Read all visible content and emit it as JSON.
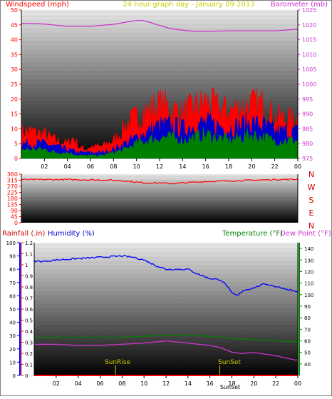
{
  "colors": {
    "wind": "#ff0000",
    "gust_mid": "#0000c8",
    "gust_low": "#008000",
    "baro": "#cc33cc",
    "title": "#cccc00",
    "humidity": "#0000ff",
    "temp": "#008000",
    "dew": "#cc33cc",
    "rain": "#ff0000",
    "axis_left": "#ff0000",
    "axis_rain": "#ff0000",
    "axis_hum": "#0000ff",
    "axis_temp": "#008000",
    "sun": "#cccc00",
    "plot_top": "#e6e6e6",
    "plot_bottom": "#000000"
  },
  "header": {
    "windspeed_label": "Windspeed (mph)",
    "title": "24 hour graph day - January 09 2013",
    "barometer_label": "Barometer (mb)"
  },
  "mid": {
    "compass": [
      "N",
      "W",
      "S",
      "E",
      "N"
    ]
  },
  "bottom_header": {
    "rainfall_label": "Rainfall (.in)",
    "humidity_label": "Humidity (%)",
    "temperature_label": "Temperature (°F)",
    "dewpoint_label": "Dew Point (°F)"
  },
  "annotations": {
    "sunrise": "SunRise",
    "sunset": "SunSet",
    "sunset_bottom": "SunSet"
  },
  "chart_data": [
    {
      "type": "line",
      "title": "24 hour graph day - January 09 2013",
      "x_ticks": [
        "02",
        "04",
        "06",
        "08",
        "10",
        "12",
        "14",
        "16",
        "18",
        "20",
        "22",
        "00"
      ],
      "xlim": [
        0,
        24
      ],
      "left_axis": {
        "label": "Windspeed (mph)",
        "ylim": [
          0,
          50
        ],
        "ticks": [
          0,
          5,
          10,
          15,
          20,
          25,
          30,
          35,
          40,
          45,
          50
        ]
      },
      "right_axis": {
        "label": "Barometer (mb)",
        "ylim": [
          975,
          1025
        ],
        "ticks": [
          975,
          980,
          985,
          990,
          995,
          1000,
          1005,
          1010,
          1015,
          1020,
          1025
        ]
      },
      "series": [
        {
          "name": "Barometer",
          "axis": "right",
          "x": [
            0,
            2,
            4,
            6,
            8,
            10,
            10.5,
            11,
            12,
            13,
            14,
            15,
            16,
            18,
            20,
            22,
            24
          ],
          "y": [
            1020.5,
            1020.3,
            1019.5,
            1019.5,
            1020.2,
            1021.5,
            1021.5,
            1021,
            1019.8,
            1018.7,
            1018.2,
            1017.8,
            1017.8,
            1018,
            1018,
            1018,
            1018.5
          ]
        },
        {
          "name": "Gust",
          "axis": "left",
          "x": [
            0,
            1,
            2,
            3,
            4,
            4.5,
            5,
            5.5,
            6,
            7,
            8,
            8.5,
            9,
            10,
            11,
            12,
            13,
            14,
            15,
            16,
            17,
            18,
            19,
            20,
            21,
            22,
            23,
            24
          ],
          "y": [
            9,
            9,
            8,
            6,
            5,
            7,
            4,
            3,
            4,
            4,
            6,
            8,
            11,
            14,
            16,
            18,
            17,
            15,
            17,
            19,
            17,
            16,
            17,
            18,
            18,
            14,
            13,
            13
          ]
        },
        {
          "name": "Wind (mid)",
          "axis": "left",
          "x": [
            0,
            1,
            2,
            3,
            4,
            5,
            6,
            7,
            8,
            9,
            10,
            11,
            12,
            13,
            14,
            15,
            16,
            17,
            18,
            19,
            20,
            21,
            22,
            23,
            24
          ],
          "y": [
            5,
            5,
            5,
            4,
            3,
            2,
            2,
            2,
            3,
            5,
            7,
            9,
            11,
            11,
            10,
            11,
            12,
            11,
            10,
            11,
            12,
            11,
            9,
            9,
            9
          ]
        },
        {
          "name": "Wind (low)",
          "axis": "left",
          "x": [
            0,
            1,
            2,
            3,
            4,
            5,
            6,
            7,
            8,
            9,
            10,
            11,
            12,
            13,
            14,
            15,
            16,
            17,
            18,
            19,
            20,
            21,
            22,
            23,
            24
          ],
          "y": [
            3,
            3,
            3,
            2,
            2,
            1,
            1,
            1,
            2,
            3,
            5,
            6,
            7,
            7,
            6,
            7,
            8,
            7,
            6,
            7,
            8,
            7,
            6,
            6,
            6
          ]
        }
      ]
    },
    {
      "type": "line",
      "x_ticks": [],
      "xlim": [
        0,
        24
      ],
      "left_axis": {
        "label": "",
        "ylim": [
          0,
          360
        ],
        "ticks": [
          0,
          45,
          90,
          135,
          180,
          225,
          270,
          315,
          360
        ]
      },
      "series": [
        {
          "name": "Wind direction",
          "axis": "left",
          "x": [
            0,
            2,
            4,
            6,
            8,
            9,
            10,
            11,
            12,
            13,
            14,
            15,
            16,
            18,
            20,
            22,
            24
          ],
          "y": [
            320,
            320,
            320,
            318,
            315,
            310,
            300,
            295,
            295,
            290,
            295,
            300,
            305,
            310,
            315,
            320,
            322
          ]
        }
      ]
    },
    {
      "type": "line",
      "x_ticks": [
        "02",
        "04",
        "06",
        "08",
        "10",
        "12",
        "14",
        "16",
        "18",
        "20",
        "22",
        "00"
      ],
      "xlim": [
        0,
        24
      ],
      "rain_axis": {
        "label": "Rainfall (.in)",
        "ylim": [
          0,
          1.2
        ],
        "ticks": [
          0,
          0.1,
          0.2,
          0.3,
          0.4,
          0.5,
          0.6,
          0.7,
          0.8,
          0.9,
          1,
          1.1,
          1.2
        ]
      },
      "humidity_axis": {
        "label": "Humidity (%)",
        "ylim": [
          0,
          100
        ],
        "ticks": [
          0,
          10,
          20,
          30,
          40,
          50,
          60,
          70,
          80,
          90,
          100
        ]
      },
      "temp_axis": {
        "label": "Temperature (°F)",
        "ylim": [
          30,
          145
        ],
        "ticks": [
          40,
          50,
          60,
          70,
          80,
          90,
          100,
          110,
          120,
          130,
          140
        ]
      },
      "series": [
        {
          "name": "Humidity",
          "axis": "humidity",
          "x": [
            0,
            1,
            2,
            4,
            6,
            8,
            9,
            10,
            11,
            12,
            14,
            15,
            16,
            17,
            17.5,
            18,
            18.5,
            19,
            20,
            21,
            22,
            23,
            24
          ],
          "y": [
            86,
            86,
            87,
            88,
            89,
            90,
            89,
            87,
            83,
            80,
            80,
            76,
            73,
            72,
            68,
            62,
            60,
            64,
            66,
            69,
            67,
            65,
            63
          ]
        },
        {
          "name": "Temperature",
          "axis": "temp",
          "x": [
            0,
            2,
            4,
            6,
            8,
            10,
            12,
            14,
            16,
            18,
            20,
            22,
            24
          ],
          "y": [
            63,
            63,
            63,
            63,
            63,
            64,
            65,
            65,
            64,
            62,
            61,
            60,
            59
          ]
        },
        {
          "name": "Dew Point",
          "axis": "temp",
          "x": [
            0,
            2,
            4,
            6,
            8,
            10,
            12,
            14,
            15,
            16,
            17,
            18,
            19,
            20,
            22,
            24
          ],
          "y": [
            57,
            57,
            56,
            56,
            57,
            58,
            60,
            58,
            57,
            56,
            54,
            50,
            49,
            50,
            47,
            43
          ]
        },
        {
          "name": "Rainfall",
          "axis": "rain",
          "x": [
            0,
            24
          ],
          "y": [
            0,
            0
          ]
        }
      ],
      "markers": [
        {
          "name": "SunRise",
          "x": 7.4
        },
        {
          "name": "SunSet",
          "x": 16.9
        }
      ]
    }
  ]
}
